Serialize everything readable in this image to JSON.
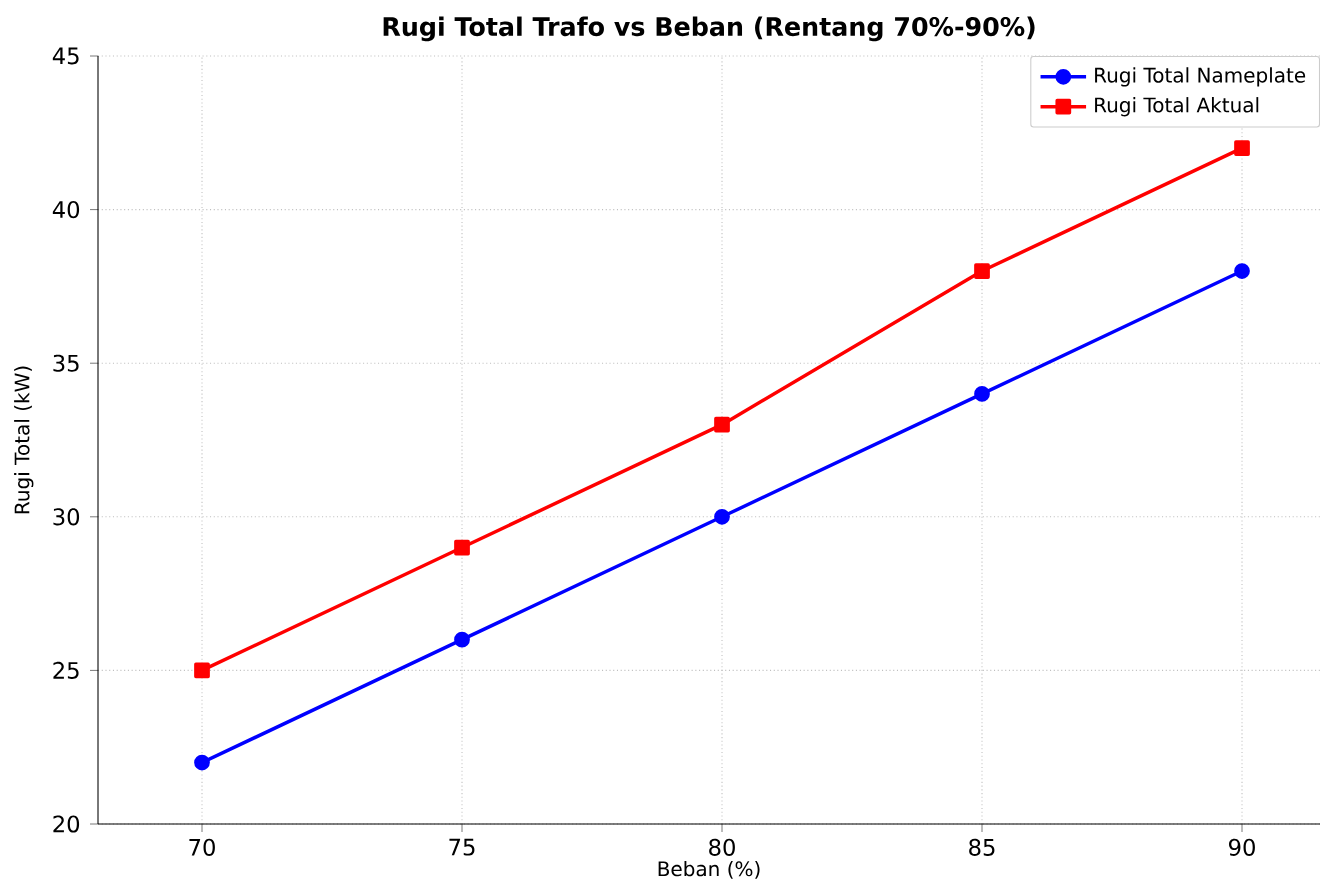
{
  "chart_data": {
    "type": "line",
    "title": "Rugi Total Trafo vs Beban (Rentang 70%-90%)",
    "xlabel": "Beban (%)",
    "ylabel": "Rugi Total (kW)",
    "x": [
      70,
      75,
      80,
      85,
      90
    ],
    "series": [
      {
        "name": "Rugi Total Nameplate",
        "color": "#0000ff",
        "values": [
          22,
          26,
          30,
          34,
          38
        ],
        "marker": "circle"
      },
      {
        "name": "Rugi Total Aktual",
        "color": "#ff0000",
        "values": [
          25,
          29,
          33,
          38,
          42
        ],
        "marker": "square"
      }
    ],
    "xlim": [
      68,
      91.5
    ],
    "ylim": [
      20,
      45
    ],
    "xticks": [
      70,
      75,
      80,
      85,
      90
    ],
    "yticks": [
      20,
      25,
      30,
      35,
      40,
      45
    ],
    "grid": true,
    "legend": "top right",
    "line_style": "solid"
  }
}
